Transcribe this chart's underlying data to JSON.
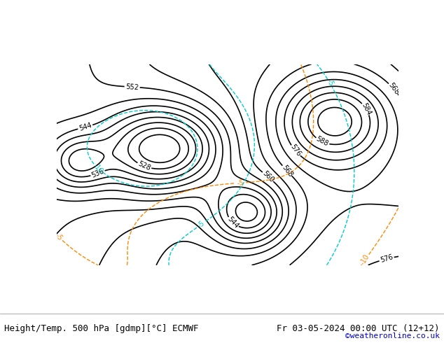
{
  "title_left": "Height/Temp. 500 hPa [gdmp][°C] ECMWF",
  "title_right": "Fr 03-05-2024 00:00 UTC (12+12)",
  "credit": "©weatheronline.co.uk",
  "bg_color": "#b5e6a0",
  "land_color": "#c8eab5",
  "sea_color": "#d0eeff",
  "text_color": "#000000",
  "credit_color": "#0000cc",
  "footer_bg": "#ffffff",
  "contour_black_color": "#000000",
  "contour_cyan_color": "#00cccc",
  "contour_orange_color": "#ff8800",
  "contour_dashed_orange": "#ff8800",
  "font_size_labels": 9,
  "font_size_footer": 9
}
